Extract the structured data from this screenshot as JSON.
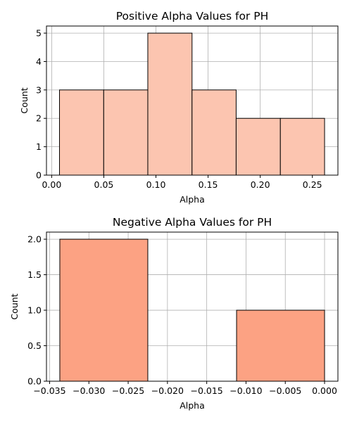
{
  "chart_data": [
    {
      "type": "bar",
      "subtype": "histogram",
      "title": "Positive Alpha Values for PH",
      "xlabel": "Alpha",
      "ylabel": "Count",
      "bin_edges": [
        0.0075,
        0.0499,
        0.0922,
        0.1346,
        0.1769,
        0.2193,
        0.2617
      ],
      "values": [
        3,
        3,
        5,
        3,
        2,
        2
      ],
      "xlim": [
        -0.005,
        0.2745
      ],
      "ylim": [
        0,
        5.25
      ],
      "xticks": [
        0.0,
        0.05,
        0.1,
        0.15,
        0.2,
        0.25
      ],
      "xtick_labels": [
        "0.00",
        "0.05",
        "0.10",
        "0.15",
        "0.20",
        "0.25"
      ],
      "yticks": [
        0,
        1,
        2,
        3,
        4,
        5
      ],
      "ytick_labels": [
        "0",
        "1",
        "2",
        "3",
        "4",
        "5"
      ],
      "bar_color": "#fcc5b0",
      "edge_color": "#000000",
      "grid": true
    },
    {
      "type": "bar",
      "subtype": "histogram",
      "title": "Negative Alpha Values for PH",
      "xlabel": "Alpha",
      "ylabel": "Count",
      "bin_edges": [
        -0.0337,
        -0.0225,
        -0.0112,
        0.0
      ],
      "values": [
        2,
        0,
        1
      ],
      "xlim": [
        -0.0354,
        0.0017
      ],
      "ylim": [
        0,
        2.1
      ],
      "xticks": [
        -0.035,
        -0.03,
        -0.025,
        -0.02,
        -0.015,
        -0.01,
        -0.005,
        0.0
      ],
      "xtick_labels": [
        "−0.035",
        "−0.030",
        "−0.025",
        "−0.020",
        "−0.015",
        "−0.010",
        "−0.005",
        "0.000"
      ],
      "yticks": [
        0.0,
        0.5,
        1.0,
        1.5,
        2.0
      ],
      "ytick_labels": [
        "0.0",
        "0.5",
        "1.0",
        "1.5",
        "2.0"
      ],
      "bar_color": "#fca283",
      "edge_color": "#000000",
      "grid": true
    }
  ]
}
